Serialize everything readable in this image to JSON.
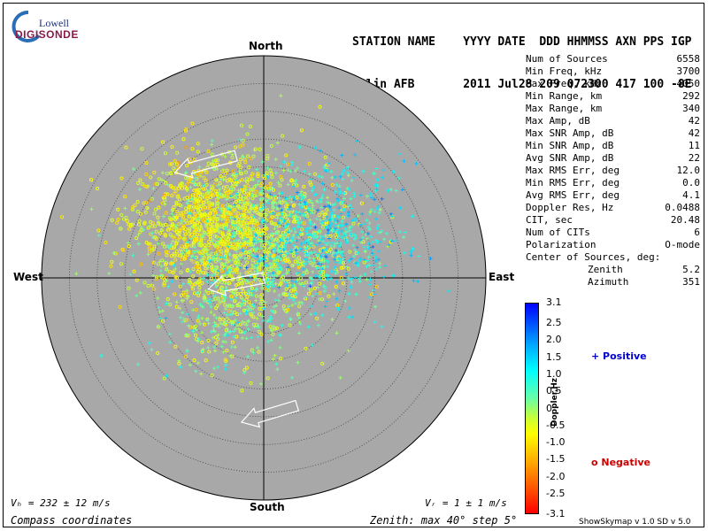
{
  "logo": {
    "top": "Lowell",
    "bottom": "DIGISONDE"
  },
  "header": {
    "line1": "STATION NAME    YYYY DATE  DDD HHMMSS AXN PPS IGP",
    "line2": "Eglin AFB       2011 Jul28 209 072300 417 100 -8E"
  },
  "compass": {
    "north": "North",
    "south": "South",
    "east": "East",
    "west": "West"
  },
  "stats": [
    {
      "label": "Num of Sources",
      "value": "6558"
    },
    {
      "label": "Min Freq, kHz",
      "value": "3700"
    },
    {
      "label": "Max Freq, kHz",
      "value": "4050"
    },
    {
      "label": "Min Range, km",
      "value": "292"
    },
    {
      "label": "Max Range, km",
      "value": "340"
    },
    {
      "label": "Max Amp, dB",
      "value": "42"
    },
    {
      "label": "Max SNR Amp, dB",
      "value": "42"
    },
    {
      "label": "Min SNR Amp, dB",
      "value": "11"
    },
    {
      "label": "Avg SNR Amp, dB",
      "value": "22"
    },
    {
      "label": "Max RMS Err, deg",
      "value": "12.0"
    },
    {
      "label": "Min RMS Err, deg",
      "value": "0.0"
    },
    {
      "label": "Avg RMS Err, deg",
      "value": "4.1"
    },
    {
      "label": "Doppler Res, Hz",
      "value": "0.0488"
    },
    {
      "label": "CIT, sec",
      "value": "20.48"
    },
    {
      "label": "Num of CITs",
      "value": "6"
    },
    {
      "label": "Polarization",
      "value": "O-mode"
    }
  ],
  "center": {
    "title": "Center of Sources, deg:",
    "zenith_label": "Zenith",
    "zenith_value": "5.2",
    "azimuth_label": "Azimuth",
    "azimuth_value": "351"
  },
  "colorbar": {
    "label": "Doppler,Hz",
    "ticks": [
      "3.1",
      "2.5",
      "2.0",
      "1.5",
      "1.0",
      "0.5",
      "0",
      "-0.5",
      "-1.0",
      "-1.5",
      "-2.0",
      "-2.5",
      "-3.1"
    ],
    "positive": "+ Positive",
    "negative": "o Negative"
  },
  "footer": {
    "vh": "Vₕ = 232 ± 12 m/s",
    "vz": "Vᵣ = 1 ± 1 m/s",
    "coords": "Compass coordinates",
    "zenith": "Zenith: max 40°  step 5°",
    "version": "ShowSkymap v 1.0  SD v 5.0"
  },
  "chart_data": {
    "type": "scatter",
    "projection": "polar skymap",
    "zenith_max_deg": 40,
    "zenith_step_deg": 5,
    "clusters": [
      {
        "name": "",
        "center_east_deg": -10,
        "center_north_deg": 10,
        "spread_deg": 5,
        "doppler_hz": -0.6,
        "marker": "o",
        "share": 0.35
      },
      {
        "name": "",
        "center_east_deg": 0,
        "center_north_deg": 7,
        "spread_deg": 6,
        "doppler_hz": 0.0,
        "marker": "+",
        "share": 0.3
      },
      {
        "name": "",
        "center_east_deg": 11,
        "center_north_deg": 8,
        "spread_deg": 5,
        "doppler_hz": 1.1,
        "marker": "+",
        "share": 0.2
      },
      {
        "name": "",
        "center_east_deg": -6,
        "center_north_deg": -5,
        "spread_deg": 5,
        "doppler_hz": 0.2,
        "marker": "+",
        "share": 0.15
      }
    ],
    "drift_arrows": [
      {
        "from_east_deg": -5,
        "from_north_deg": 22,
        "to_east_deg": -16,
        "to_north_deg": 19
      },
      {
        "from_east_deg": 0,
        "from_north_deg": 0,
        "to_east_deg": -10,
        "to_north_deg": -2
      },
      {
        "from_east_deg": 6,
        "from_north_deg": -23,
        "to_east_deg": -4,
        "to_north_deg": -26
      }
    ],
    "sample_point_count": 3000,
    "num_sources": 6558,
    "colorbar_range": [
      -3.1,
      3.1
    ]
  }
}
